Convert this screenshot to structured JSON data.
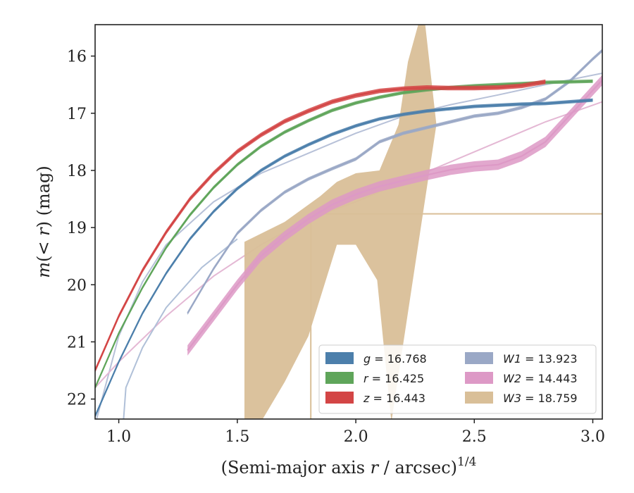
{
  "chart_data": {
    "type": "line",
    "xlabel": "(Semi-major axis r / arcsec)^1/4",
    "ylabel": "m(< r) (mag)",
    "xlim": [
      0.9,
      3.04
    ],
    "ylim": [
      22.35,
      15.45
    ],
    "y_inverted": true,
    "xticks": [
      "1.0",
      "1.5",
      "2.0",
      "2.5",
      "3.0"
    ],
    "yticks": [
      "16",
      "17",
      "18",
      "19",
      "20",
      "21",
      "22"
    ],
    "grid": false,
    "legend": {
      "placement": "lower-right",
      "columns": 2
    },
    "series": [
      {
        "name": "g = 16.768",
        "band": "g",
        "value": "16.768",
        "color": "#4c7fab",
        "kind": "band",
        "points": [
          [
            0.9,
            22.3
          ],
          [
            1.0,
            21.35
          ],
          [
            1.1,
            20.5
          ],
          [
            1.2,
            19.8
          ],
          [
            1.3,
            19.2
          ],
          [
            1.4,
            18.72
          ],
          [
            1.5,
            18.32
          ],
          [
            1.6,
            18.0
          ],
          [
            1.7,
            17.75
          ],
          [
            1.8,
            17.55
          ],
          [
            1.9,
            17.37
          ],
          [
            2.0,
            17.22
          ],
          [
            2.1,
            17.1
          ],
          [
            2.2,
            17.02
          ],
          [
            2.3,
            16.96
          ],
          [
            2.4,
            16.92
          ],
          [
            2.5,
            16.88
          ],
          [
            2.6,
            16.86
          ],
          [
            2.7,
            16.84
          ],
          [
            2.8,
            16.83
          ],
          [
            2.9,
            16.8
          ],
          [
            3.0,
            16.77
          ]
        ],
        "err": 0.03
      },
      {
        "name": "r = 16.425",
        "band": "r",
        "value": "16.425",
        "color": "#5fa55a",
        "kind": "band",
        "points": [
          [
            0.9,
            21.8
          ],
          [
            1.0,
            20.85
          ],
          [
            1.1,
            20.05
          ],
          [
            1.2,
            19.35
          ],
          [
            1.3,
            18.78
          ],
          [
            1.4,
            18.3
          ],
          [
            1.5,
            17.9
          ],
          [
            1.6,
            17.58
          ],
          [
            1.7,
            17.33
          ],
          [
            1.8,
            17.13
          ],
          [
            1.9,
            16.95
          ],
          [
            2.0,
            16.82
          ],
          [
            2.1,
            16.72
          ],
          [
            2.2,
            16.64
          ],
          [
            2.3,
            16.59
          ],
          [
            2.4,
            16.55
          ],
          [
            2.5,
            16.52
          ],
          [
            2.6,
            16.5
          ],
          [
            2.7,
            16.48
          ],
          [
            2.8,
            16.46
          ],
          [
            2.9,
            16.45
          ],
          [
            3.0,
            16.44
          ]
        ],
        "err": 0.03
      },
      {
        "name": "z = 16.443",
        "band": "z",
        "value": "16.443",
        "color": "#d34545",
        "kind": "band",
        "points": [
          [
            0.9,
            21.5
          ],
          [
            1.0,
            20.55
          ],
          [
            1.1,
            19.75
          ],
          [
            1.2,
            19.08
          ],
          [
            1.3,
            18.5
          ],
          [
            1.4,
            18.05
          ],
          [
            1.5,
            17.67
          ],
          [
            1.6,
            17.38
          ],
          [
            1.7,
            17.14
          ],
          [
            1.8,
            16.96
          ],
          [
            1.9,
            16.8
          ],
          [
            2.0,
            16.69
          ],
          [
            2.1,
            16.61
          ],
          [
            2.2,
            16.57
          ],
          [
            2.3,
            16.55
          ],
          [
            2.4,
            16.56
          ],
          [
            2.5,
            16.56
          ],
          [
            2.6,
            16.55
          ],
          [
            2.7,
            16.52
          ],
          [
            2.8,
            16.45
          ]
        ],
        "err": 0.04
      },
      {
        "name": "W1 = 13.923",
        "band": "W1",
        "value": "13.923",
        "color": "#9aa8c6",
        "kind": "band",
        "points": [
          [
            1.29,
            20.5
          ],
          [
            1.4,
            19.72
          ],
          [
            1.5,
            19.1
          ],
          [
            1.6,
            18.7
          ],
          [
            1.7,
            18.38
          ],
          [
            1.8,
            18.15
          ],
          [
            1.9,
            17.97
          ],
          [
            2.0,
            17.8
          ],
          [
            2.1,
            17.5
          ],
          [
            2.2,
            17.35
          ],
          [
            2.3,
            17.25
          ],
          [
            2.4,
            17.15
          ],
          [
            2.5,
            17.05
          ],
          [
            2.6,
            17.0
          ],
          [
            2.7,
            16.9
          ],
          [
            2.8,
            16.75
          ],
          [
            2.9,
            16.45
          ],
          [
            3.0,
            16.05
          ],
          [
            3.04,
            15.9
          ]
        ],
        "err": 0.03
      },
      {
        "name": "W2 = 14.443",
        "band": "W2",
        "value": "14.443",
        "color": "#dd99c6",
        "kind": "band",
        "points": [
          [
            1.29,
            21.15
          ],
          [
            1.4,
            20.55
          ],
          [
            1.5,
            20.0
          ],
          [
            1.6,
            19.5
          ],
          [
            1.7,
            19.15
          ],
          [
            1.8,
            18.85
          ],
          [
            1.9,
            18.6
          ],
          [
            2.0,
            18.42
          ],
          [
            2.1,
            18.28
          ],
          [
            2.2,
            18.18
          ],
          [
            2.3,
            18.08
          ],
          [
            2.4,
            17.99
          ],
          [
            2.5,
            17.93
          ],
          [
            2.6,
            17.9
          ],
          [
            2.7,
            17.75
          ],
          [
            2.8,
            17.5
          ],
          [
            2.9,
            17.05
          ],
          [
            3.0,
            16.6
          ],
          [
            3.04,
            16.42
          ]
        ],
        "err": 0.09
      },
      {
        "name": "W3 = 18.759",
        "band": "W3",
        "value": "18.759",
        "color": "#d9bf98",
        "kind": "band",
        "upper": [
          [
            1.53,
            19.25
          ],
          [
            1.7,
            18.9
          ],
          [
            1.85,
            18.45
          ],
          [
            1.92,
            18.2
          ],
          [
            2.0,
            18.05
          ],
          [
            2.1,
            18.0
          ],
          [
            2.18,
            17.2
          ],
          [
            2.22,
            16.1
          ],
          [
            2.27,
            15.35
          ],
          [
            2.29,
            15.35
          ],
          [
            2.34,
            17.2
          ]
        ],
        "lower": [
          [
            1.53,
            22.4
          ],
          [
            1.6,
            22.4
          ],
          [
            1.7,
            21.7
          ],
          [
            1.8,
            20.9
          ],
          [
            1.92,
            19.3
          ],
          [
            2.0,
            19.3
          ],
          [
            2.09,
            19.92
          ],
          [
            2.15,
            22.4
          ]
        ],
        "points": [
          [
            1.83,
            18.76
          ],
          [
            3.04,
            18.76
          ]
        ],
        "drop_x": 1.81
      }
    ],
    "model_curves": [
      {
        "color": "#b7c1d8",
        "points": [
          [
            0.9,
            22.45
          ],
          [
            1.0,
            20.9
          ],
          [
            1.1,
            19.95
          ],
          [
            1.2,
            19.3
          ],
          [
            1.4,
            18.55
          ],
          [
            1.6,
            18.05
          ],
          [
            1.8,
            17.7
          ],
          [
            2.0,
            17.35
          ],
          [
            2.2,
            17.05
          ],
          [
            2.4,
            16.85
          ],
          [
            2.6,
            16.68
          ],
          [
            2.8,
            16.5
          ],
          [
            3.04,
            16.3
          ]
        ]
      },
      {
        "color": "#e4b8d4",
        "points": [
          [
            0.9,
            21.8
          ],
          [
            1.0,
            21.35
          ],
          [
            1.2,
            20.55
          ],
          [
            1.4,
            19.85
          ],
          [
            1.6,
            19.3
          ],
          [
            1.8,
            18.85
          ],
          [
            2.0,
            18.55
          ],
          [
            2.2,
            18.2
          ],
          [
            2.4,
            17.85
          ],
          [
            2.6,
            17.5
          ],
          [
            2.8,
            17.15
          ],
          [
            3.04,
            16.8
          ]
        ]
      },
      {
        "color": "#b0c0d8",
        "points": [
          [
            1.0,
            23.5
          ],
          [
            1.03,
            21.8
          ],
          [
            1.1,
            21.1
          ],
          [
            1.2,
            20.4
          ],
          [
            1.35,
            19.7
          ],
          [
            1.5,
            19.2
          ]
        ]
      }
    ]
  },
  "legend_items": [
    {
      "color": "#4c7fab",
      "sym": "g",
      "rest": " = 16.768"
    },
    {
      "color": "#5fa55a",
      "sym": "r",
      "rest": " = 16.425"
    },
    {
      "color": "#d34545",
      "sym": "z",
      "rest": " = 16.443"
    },
    {
      "color": "#9aa8c6",
      "sym": "W1",
      "rest": " = 13.923"
    },
    {
      "color": "#dd99c6",
      "sym": "W2",
      "rest": " = 14.443"
    },
    {
      "color": "#d9bf98",
      "sym": "W3",
      "rest": " = 18.759"
    }
  ],
  "xlabel_parts": {
    "pre": "(Semi-major axis ",
    "var": "r",
    "post": " / arcsec)",
    "sup": "1/4"
  },
  "ylabel_parts": {
    "var1": "m",
    "mid": "(< ",
    "var2": "r",
    "post": ") (mag)"
  }
}
